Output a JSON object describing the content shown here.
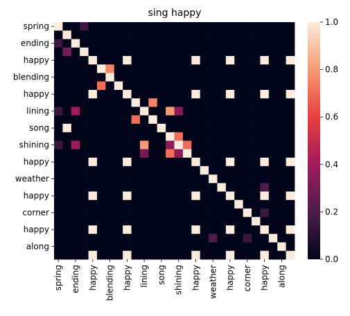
{
  "chart_data": {
    "type": "heatmap",
    "title": "sing happy",
    "row_labels": [
      "spring",
      "",
      "ending",
      "",
      "happy",
      "",
      "blending",
      "",
      "happy",
      "",
      "lining",
      "",
      "song",
      "",
      "shining",
      "",
      "happy",
      "",
      "weather",
      "",
      "happy",
      "",
      "corner",
      "",
      "happy",
      "",
      "along",
      ""
    ],
    "col_labels": [
      "spring",
      "",
      "ending",
      "",
      "happy",
      "",
      "blending",
      "",
      "happy",
      "",
      "lining",
      "",
      "song",
      "",
      "shining",
      "",
      "happy",
      "",
      "weather",
      "",
      "happy",
      "",
      "corner",
      "",
      "happy",
      "",
      "along",
      ""
    ],
    "values": [
      [
        1,
        0,
        0,
        0.15,
        0,
        0,
        0,
        0,
        0,
        0,
        0,
        0,
        0,
        0,
        0,
        0,
        0,
        0,
        0,
        0,
        0,
        0,
        0,
        0,
        0,
        0,
        0,
        0
      ],
      [
        0,
        1,
        0,
        0,
        0,
        0,
        0,
        0,
        0,
        0,
        0,
        0,
        0,
        0,
        0,
        0,
        0,
        0,
        0,
        0,
        0,
        0,
        0,
        0,
        0,
        0,
        0,
        0
      ],
      [
        0.15,
        0,
        1,
        0,
        0,
        0,
        0,
        0,
        0,
        0,
        0,
        0,
        0,
        0,
        0,
        0,
        0,
        0,
        0,
        0,
        0,
        0,
        0,
        0,
        0,
        0,
        0,
        0
      ],
      [
        0,
        0.3,
        0,
        1,
        0,
        0,
        0,
        0,
        0,
        0,
        0,
        0,
        0,
        0,
        0,
        0,
        0,
        0,
        0,
        0,
        0,
        0,
        0,
        0,
        0,
        0,
        0,
        0
      ],
      [
        0,
        0,
        0,
        0,
        1,
        0,
        0,
        0,
        1,
        0,
        0,
        0,
        0,
        0,
        0,
        0,
        1,
        0,
        0,
        0,
        1,
        0,
        0,
        0,
        1,
        0,
        0,
        1
      ],
      [
        0,
        0,
        0,
        0,
        0,
        1,
        0.75,
        0,
        0,
        0,
        0,
        0,
        0,
        0,
        0,
        0,
        0,
        0,
        0,
        0,
        0,
        0,
        0,
        0,
        0,
        0,
        0,
        0
      ],
      [
        0,
        0,
        0,
        0,
        0,
        0,
        1,
        0,
        0,
        0,
        0,
        0,
        0,
        0,
        0,
        0,
        0,
        0,
        0,
        0,
        0,
        0,
        0,
        0,
        0,
        0,
        0,
        0
      ],
      [
        0,
        0,
        0,
        0,
        0,
        0.7,
        0,
        1,
        0,
        0,
        0,
        0,
        0,
        0,
        0,
        0,
        0,
        0,
        0,
        0,
        0,
        0,
        0,
        0,
        0,
        0,
        0,
        0
      ],
      [
        0,
        0,
        0,
        0,
        1,
        0,
        0,
        0,
        1,
        0,
        0,
        0,
        0,
        0,
        0,
        0,
        1,
        0,
        0,
        0,
        1,
        0,
        0,
        0,
        1,
        0,
        0,
        1
      ],
      [
        0,
        0,
        0,
        0,
        0,
        0,
        0,
        0,
        0,
        1,
        0,
        0.75,
        0,
        0,
        0,
        0,
        0,
        0,
        0,
        0,
        0,
        0,
        0,
        0,
        0,
        0,
        0,
        0
      ],
      [
        0.15,
        0,
        0.4,
        0,
        0,
        0,
        0,
        0,
        0,
        0,
        1,
        0,
        0,
        0.8,
        0.35,
        0,
        0,
        0,
        0,
        0,
        0,
        0,
        0,
        0,
        0,
        0,
        0,
        0
      ],
      [
        0,
        0,
        0,
        0,
        0,
        0,
        0,
        0,
        0,
        0.7,
        0,
        1,
        0,
        0,
        0,
        0,
        0,
        0,
        0,
        0,
        0,
        0,
        0,
        0,
        0,
        0,
        0,
        0
      ],
      [
        0,
        1,
        0,
        0,
        0,
        0,
        0,
        0,
        0,
        0,
        0,
        0,
        1,
        0,
        0,
        0,
        0,
        0,
        0,
        0,
        0,
        0,
        0,
        0,
        0,
        0,
        0,
        0
      ],
      [
        0,
        0,
        0,
        0,
        0,
        0,
        0,
        0,
        0,
        0,
        0,
        0,
        0,
        1,
        0.7,
        0,
        0,
        0,
        0,
        0,
        0,
        0,
        0,
        0,
        0,
        0,
        0,
        0
      ],
      [
        0.15,
        0,
        0.4,
        0,
        0,
        0,
        0,
        0,
        0,
        0,
        0.8,
        0,
        0,
        0.35,
        1,
        0.7,
        0,
        0,
        0,
        0,
        0,
        0,
        0,
        0,
        0,
        0,
        0,
        0
      ],
      [
        0,
        0,
        0,
        0,
        0,
        0,
        0,
        0,
        0,
        0,
        0.3,
        0,
        0,
        0.7,
        0.35,
        1,
        0,
        0,
        0,
        0,
        0,
        0,
        0,
        0,
        0,
        0,
        0,
        0
      ],
      [
        0,
        0,
        0,
        0,
        1,
        0,
        0,
        0,
        1,
        0,
        0,
        0,
        0,
        0,
        0,
        0,
        1,
        0,
        0,
        0,
        1,
        0,
        0,
        0,
        1,
        0,
        0,
        1
      ],
      [
        0,
        0,
        0,
        0,
        0,
        0,
        0,
        0,
        0,
        0,
        0,
        0,
        0,
        0,
        0,
        0,
        0,
        1,
        0,
        0,
        0,
        0,
        0,
        0,
        0,
        0,
        0,
        0
      ],
      [
        0,
        0,
        0,
        0,
        0,
        0,
        0,
        0,
        0,
        0,
        0,
        0,
        0,
        0,
        0,
        0,
        0,
        0,
        1,
        0,
        0,
        0,
        0,
        0,
        0,
        0,
        0,
        0
      ],
      [
        0,
        0,
        0,
        0,
        0,
        0,
        0,
        0,
        0,
        0,
        0,
        0,
        0,
        0,
        0,
        0,
        0,
        0,
        0,
        1,
        0,
        0,
        0,
        0,
        0.2,
        0,
        0,
        0
      ],
      [
        0,
        0,
        0,
        0,
        1,
        0,
        0,
        0,
        1,
        0,
        0,
        0,
        0,
        0,
        0,
        0,
        1,
        0,
        0,
        0,
        1,
        0,
        0,
        0,
        1,
        0,
        0,
        1
      ],
      [
        0,
        0,
        0,
        0,
        0,
        0,
        0,
        0,
        0,
        0,
        0,
        0,
        0,
        0,
        0,
        0,
        0,
        0,
        0,
        0,
        0,
        1,
        0,
        0,
        0,
        0,
        0,
        0
      ],
      [
        0,
        0,
        0,
        0,
        0,
        0,
        0,
        0,
        0,
        0,
        0,
        0,
        0,
        0,
        0,
        0,
        0,
        0,
        0,
        0,
        0,
        0,
        1,
        0,
        0.15,
        0,
        0,
        0
      ],
      [
        0,
        0,
        0,
        0,
        0,
        0,
        0,
        0,
        0,
        0,
        0,
        0,
        0,
        0,
        0,
        0,
        0,
        0,
        0,
        0,
        0,
        0,
        0,
        1,
        0,
        0,
        0,
        0
      ],
      [
        0,
        0,
        0,
        0,
        1,
        0,
        0,
        0,
        1,
        0,
        0,
        0,
        0,
        0,
        0,
        0,
        1,
        0,
        0,
        0,
        1,
        0,
        0,
        0,
        1,
        0,
        0,
        1
      ],
      [
        0,
        0,
        0,
        0,
        0,
        0,
        0,
        0,
        0,
        0,
        0,
        0,
        0,
        0,
        0,
        0,
        0,
        0,
        0.2,
        0,
        0,
        0,
        0.15,
        0,
        0,
        1,
        0,
        0
      ],
      [
        0,
        0,
        0,
        0,
        0,
        0,
        0,
        0,
        0,
        0,
        0,
        0,
        0,
        0,
        0,
        0,
        0,
        0,
        0,
        0,
        0,
        0,
        0,
        0,
        0,
        0,
        1,
        0
      ],
      [
        0,
        0,
        0,
        0,
        1,
        0,
        0,
        0,
        1,
        0,
        0,
        0,
        0,
        0,
        0,
        0,
        1,
        0,
        0,
        0,
        1,
        0,
        0,
        0,
        1,
        0,
        0,
        1
      ]
    ],
    "colorbar": {
      "range": [
        0,
        1
      ],
      "ticks": [
        "0.0",
        "0.2",
        "0.4",
        "0.6",
        "0.8",
        "1.0"
      ],
      "colormap": "rocket",
      "colors": [
        "#03051a",
        "#4c1d4b",
        "#a11a5b",
        "#e83f3f",
        "#f69c73",
        "#faebdd"
      ]
    }
  }
}
